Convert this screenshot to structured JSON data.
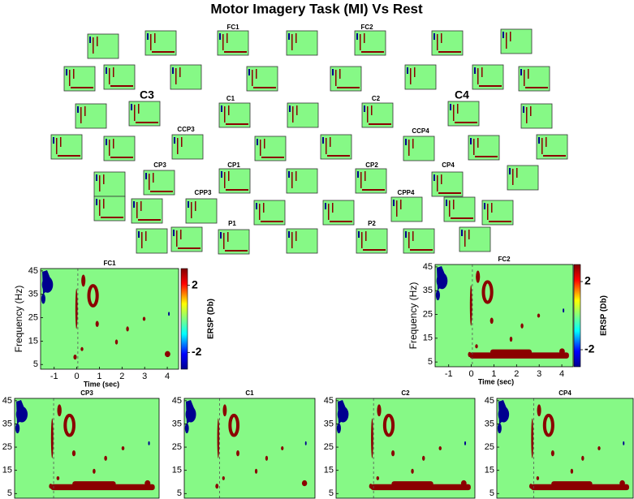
{
  "title": "Motor Imagery Task (MI) Vs Rest",
  "topo_labels": [
    "FC1",
    "FC2",
    "C3",
    "C4",
    "C1",
    "C2",
    "CCP3",
    "CCP4",
    "CP3",
    "CP1",
    "CP2",
    "CP4",
    "CPP3",
    "CPP4",
    "P1",
    "P2"
  ],
  "chart_data": [
    {
      "type": "spectrogram",
      "title": "FC1",
      "xlabel": "Time (sec)",
      "ylabel": "Frequency (Hz)",
      "colorbar_label": "ERSP (Db)",
      "clim": [
        -3,
        3
      ],
      "colorbar_ticks": [
        2,
        -2
      ],
      "xlim": [
        -1.6,
        4.5
      ],
      "xticks": [
        -1,
        0,
        1,
        2,
        3,
        4
      ],
      "ylim": [
        3,
        46
      ],
      "yticks": [
        5,
        15,
        25,
        35,
        45
      ]
    },
    {
      "type": "spectrogram",
      "title": "FC2",
      "xlabel": "Time (sec)",
      "ylabel": "Frequency (Hz)",
      "colorbar_label": "ERSP (Db)",
      "clim": [
        -3,
        3
      ],
      "colorbar_ticks": [
        2,
        -2
      ],
      "xlim": [
        -1.6,
        4.5
      ],
      "xticks": [
        -1,
        0,
        1,
        2,
        3,
        4
      ],
      "ylim": [
        3,
        46
      ],
      "yticks": [
        5,
        15,
        25,
        35,
        45
      ]
    },
    {
      "type": "spectrogram",
      "title": "CP3",
      "ylim": [
        3,
        46
      ],
      "yticks": [
        5,
        15,
        25,
        35,
        45
      ]
    },
    {
      "type": "spectrogram",
      "title": "C1",
      "ylim": [
        3,
        46
      ],
      "yticks": [
        5,
        15,
        25,
        35,
        45
      ]
    },
    {
      "type": "spectrogram",
      "title": "C2",
      "ylim": [
        3,
        46
      ],
      "yticks": [
        5,
        15,
        25,
        35,
        45
      ]
    },
    {
      "type": "spectrogram",
      "title": "CP4",
      "ylim": [
        3,
        46
      ],
      "yticks": [
        5,
        15,
        25,
        35,
        45
      ]
    }
  ]
}
